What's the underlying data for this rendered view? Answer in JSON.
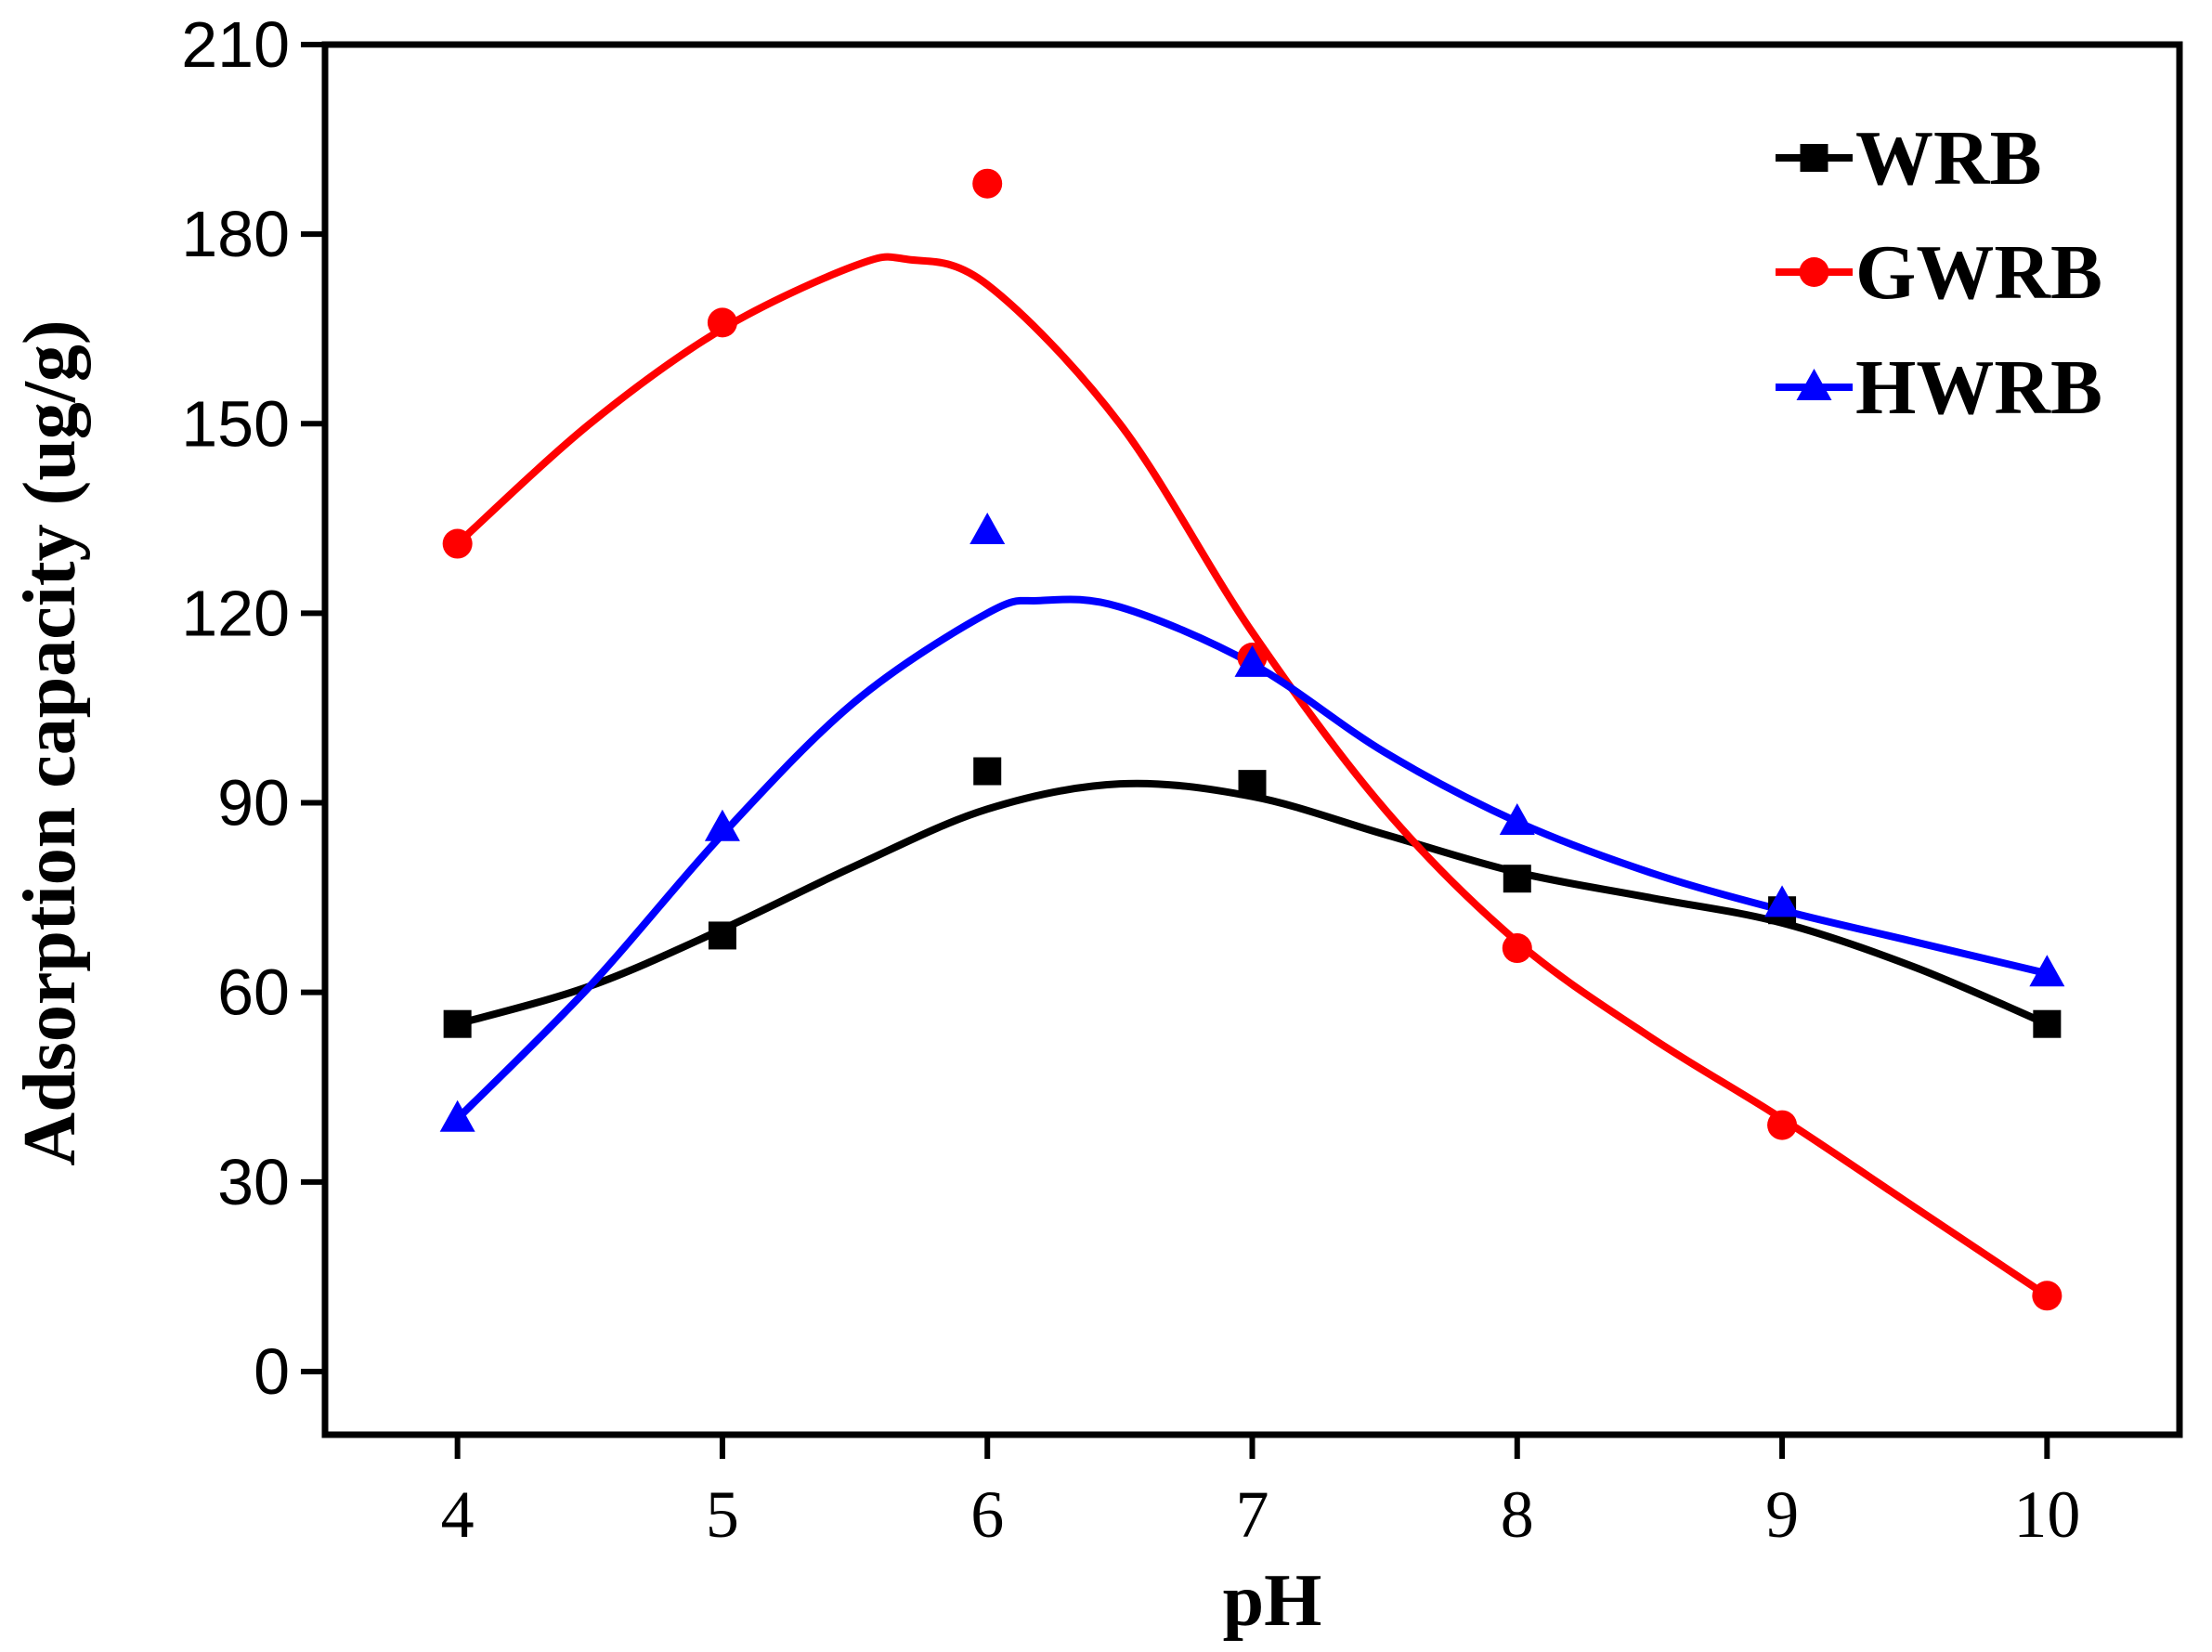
{
  "chart_data": {
    "type": "scatter",
    "title": "",
    "xlabel": "pH",
    "ylabel": "Adsorption capacity (ug/g)",
    "xlim": [
      3.5,
      10.5
    ],
    "ylim": [
      -10,
      210
    ],
    "x_ticks": [
      4,
      5,
      6,
      7,
      8,
      9,
      10
    ],
    "y_ticks": [
      0,
      30,
      60,
      90,
      120,
      150,
      180,
      210
    ],
    "x_tick_labels": [
      "4",
      "5",
      "6",
      "7",
      "8",
      "9",
      "10"
    ],
    "y_tick_labels": [
      "0",
      "30",
      "60",
      "90",
      "120",
      "150",
      "180",
      "210"
    ],
    "legend_position": "top-right",
    "grid": false,
    "series": [
      {
        "name": "WRB",
        "marker": "square",
        "color": "#000000",
        "x": [
          4,
          5,
          6,
          7,
          8,
          9,
          10
        ],
        "values": [
          55,
          69,
          95,
          93,
          78,
          73,
          55
        ],
        "fit": [
          [
            4,
            55
          ],
          [
            4.5,
            61
          ],
          [
            5,
            70
          ],
          [
            5.5,
            80
          ],
          [
            6,
            89
          ],
          [
            6.5,
            93
          ],
          [
            7,
            91
          ],
          [
            7.5,
            85
          ],
          [
            8,
            79
          ],
          [
            8.5,
            75
          ],
          [
            9,
            71
          ],
          [
            9.5,
            64
          ],
          [
            10,
            55
          ]
        ]
      },
      {
        "name": "GWRB",
        "marker": "circle",
        "color": "#ff0000",
        "x": [
          4,
          5,
          6,
          7,
          8,
          9,
          10
        ],
        "values": [
          131,
          166,
          188,
          113,
          67,
          39,
          12
        ],
        "fit": [
          [
            4,
            131
          ],
          [
            4.5,
            150
          ],
          [
            5,
            165
          ],
          [
            5.5,
            175
          ],
          [
            5.7,
            176
          ],
          [
            6,
            172
          ],
          [
            6.5,
            150
          ],
          [
            7,
            117
          ],
          [
            7.5,
            89
          ],
          [
            8,
            68
          ],
          [
            8.5,
            53
          ],
          [
            9,
            40
          ],
          [
            9.5,
            26
          ],
          [
            10,
            12
          ]
        ]
      },
      {
        "name": "HWRB",
        "marker": "triangle",
        "color": "#0000ff",
        "x": [
          4,
          5,
          6,
          7,
          8,
          9,
          10
        ],
        "values": [
          40,
          86,
          133,
          112,
          87,
          74,
          63
        ],
        "fit": [
          [
            4,
            40
          ],
          [
            4.5,
            61
          ],
          [
            5,
            85
          ],
          [
            5.5,
            106
          ],
          [
            6,
            120
          ],
          [
            6.2,
            122
          ],
          [
            6.5,
            121
          ],
          [
            7,
            112
          ],
          [
            7.5,
            98
          ],
          [
            8,
            87
          ],
          [
            8.5,
            79
          ],
          [
            9,
            73
          ],
          [
            9.5,
            68
          ],
          [
            10,
            63
          ]
        ]
      }
    ]
  }
}
